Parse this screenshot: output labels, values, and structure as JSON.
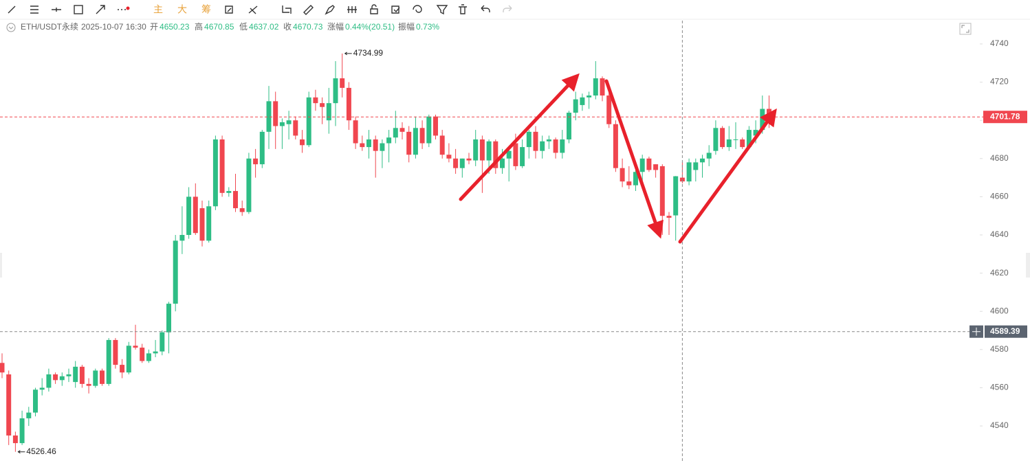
{
  "toolbar": {
    "labels": [
      "主",
      "大",
      "筹"
    ]
  },
  "header": {
    "symbol": "ETH/USDT永续",
    "time": "2025-10-07 16:30",
    "items": [
      {
        "label": "开",
        "value": "4650.23"
      },
      {
        "label": "高",
        "value": "4670.85"
      },
      {
        "label": "低",
        "value": "4637.02"
      },
      {
        "label": "收",
        "value": "4670.73"
      },
      {
        "label": "涨幅",
        "value": "0.44%(20.51)"
      },
      {
        "label": "振幅",
        "value": "0.73%"
      }
    ]
  },
  "chart_data": {
    "type": "candlestick",
    "up_color": "#2ebd85",
    "down_color": "#f0464f",
    "ylim": [
      4520.6,
      4763
    ],
    "yticks": [
      4540,
      4560,
      4580,
      4600,
      4620,
      4640,
      4660,
      4680,
      4700,
      4720,
      4740
    ],
    "crosshair_price": 4589.39,
    "open": [
      4573,
      4567,
      4535,
      4531,
      4544,
      4547,
      4559,
      4560,
      4567,
      4564,
      4566,
      4563,
      4571,
      4562,
      4561,
      4569,
      4562,
      4585,
      4572,
      4568,
      4582,
      4581,
      4574,
      4578,
      4579,
      4589,
      4604,
      4637,
      4640,
      4660,
      4654,
      4637,
      4655,
      4690,
      4662,
      4663,
      4654,
      4652,
      4680,
      4677,
      4694,
      4710,
      4697,
      4698,
      4700,
      4690,
      4687,
      4712,
      4709,
      4700,
      4709,
      4722,
      4717,
      4700,
      4688,
      4686,
      4690,
      4684,
      4688,
      4691,
      4696,
      4694,
      4682,
      4696,
      4688,
      4702,
      4692,
      4682,
      4680,
      4675,
      4680,
      4679,
      4690,
      4679,
      4689,
      4675,
      4680,
      4688,
      4676,
      4686,
      4694,
      4684,
      4689,
      4690,
      4683,
      4690,
      4704,
      4708,
      4712,
      4713,
      4722,
      4713,
      4698,
      4675,
      4668,
      4666,
      4673,
      4680,
      4677,
      4676,
      4650,
      4650.23,
      4670,
      4668,
      4674,
      4678,
      4680,
      4684,
      4696,
      4686,
      4690,
      4690,
      4686,
      4692,
      4695,
      4706
    ],
    "high": [
      4578,
      4569,
      4537,
      4548,
      4550,
      4560,
      4565,
      4570,
      4568,
      4568,
      4570,
      4574,
      4572,
      4565,
      4570,
      4570,
      4586,
      4586,
      4575,
      4584,
      4593,
      4583,
      4580,
      4585,
      4590,
      4605,
      4640,
      4655,
      4665,
      4667,
      4658,
      4658,
      4692,
      4692,
      4665,
      4672,
      4658,
      4683,
      4685,
      4695,
      4718,
      4715,
      4701,
      4705,
      4702,
      4695,
      4715,
      4716,
      4712,
      4717,
      4731,
      4734.99,
      4720,
      4702,
      4692,
      4695,
      4692,
      4690,
      4695,
      4705,
      4699,
      4697,
      4702,
      4700,
      4703,
      4703,
      4695,
      4688,
      4685,
      4680,
      4683,
      4695,
      4692,
      4690,
      4690,
      4685,
      4686,
      4693,
      4690,
      4695,
      4697,
      4692,
      4692,
      4691,
      4695,
      4705,
      4715,
      4714,
      4715,
      4731,
      4723,
      4718,
      4700,
      4680,
      4676,
      4678,
      4682,
      4681,
      4677,
      4677,
      4652,
      4670.85,
      4678,
      4680,
      4680,
      4682,
      4687,
      4700,
      4697,
      4697,
      4699,
      4691,
      4697,
      4700,
      4713,
      4713
    ],
    "low": [
      4565,
      4530,
      4526.46,
      4530,
      4540,
      4545,
      4556,
      4558,
      4562,
      4561,
      4563,
      4560,
      4560,
      4557,
      4560,
      4561,
      4561,
      4570,
      4565,
      4567,
      4580,
      4573,
      4573,
      4576,
      4577,
      4578,
      4600,
      4630,
      4638,
      4640,
      4634,
      4636,
      4653,
      4660,
      4660,
      4652,
      4650,
      4651,
      4670,
      4675,
      4685,
      4685,
      4685,
      4690,
      4690,
      4683,
      4686,
      4705,
      4698,
      4693,
      4697,
      4712,
      4695,
      4685,
      4684,
      4680,
      4670,
      4675,
      4678,
      4688,
      4690,
      4678,
      4680,
      4685,
      4686,
      4690,
      4680,
      4678,
      4672,
      4670,
      4677,
      4676,
      4662,
      4672,
      4672,
      4672,
      4668,
      4674,
      4675,
      4680,
      4680,
      4680,
      4685,
      4680,
      4680,
      4688,
      4700,
      4705,
      4706,
      4711,
      4710,
      4696,
      4673,
      4665,
      4664,
      4663,
      4665,
      4673,
      4670,
      4640,
      4640,
      4637.02,
      4667,
      4666,
      4668,
      4670,
      4676,
      4682,
      4685,
      4684,
      4685,
      4685,
      4685,
      4688,
      4693,
      4696
    ],
    "close": [
      4568,
      4535,
      4531,
      4544,
      4547,
      4559,
      4560,
      4567,
      4564,
      4566,
      4567,
      4571,
      4562,
      4561,
      4569,
      4562,
      4585,
      4572,
      4568,
      4582,
      4581,
      4574,
      4578,
      4579,
      4589,
      4604,
      4637,
      4640,
      4660,
      4641,
      4637,
      4655,
      4690,
      4662,
      4663,
      4654,
      4652,
      4680,
      4677,
      4694,
      4710,
      4697,
      4699,
      4700,
      4692,
      4687,
      4712,
      4709,
      4707,
      4709,
      4722,
      4717,
      4700,
      4688,
      4686,
      4690,
      4684,
      4688,
      4691,
      4696,
      4694,
      4682,
      4696,
      4688,
      4702,
      4692,
      4682,
      4680,
      4675,
      4680,
      4679,
      4690,
      4679,
      4689,
      4675,
      4680,
      4684,
      4676,
      4686,
      4694,
      4684,
      4689,
      4690,
      4683,
      4690,
      4704,
      4711,
      4712,
      4713,
      4722,
      4713,
      4698,
      4675,
      4668,
      4666,
      4673,
      4680,
      4674,
      4674,
      4650,
      4649,
      4670.73,
      4668,
      4678,
      4678,
      4680,
      4683,
      4696,
      4686,
      4690,
      4690,
      4686,
      4695,
      4695,
      4706,
      4701.78
    ]
  }
}
